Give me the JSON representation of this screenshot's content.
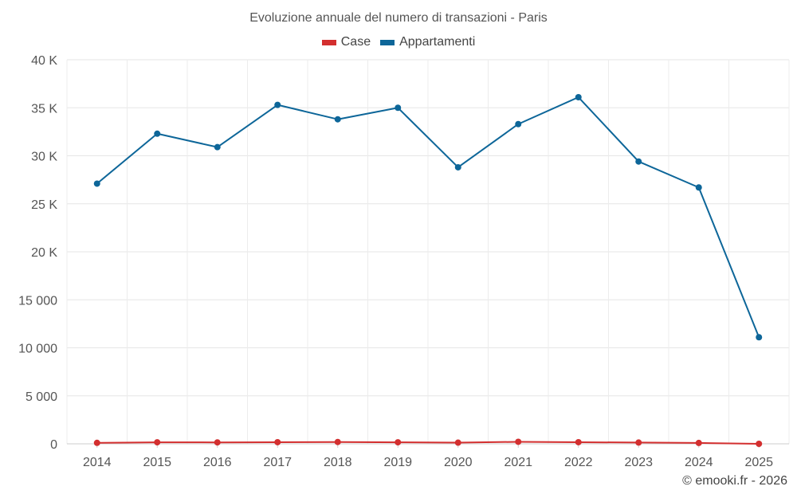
{
  "chart_data": {
    "type": "line",
    "title": "Evoluzione annuale del numero di transazioni - Paris",
    "categories": [
      "2014",
      "2015",
      "2016",
      "2017",
      "2018",
      "2019",
      "2020",
      "2021",
      "2022",
      "2023",
      "2024",
      "2025"
    ],
    "series": [
      {
        "name": "Case",
        "color": "#d32f2f",
        "values": [
          100,
          160,
          150,
          170,
          190,
          160,
          120,
          210,
          170,
          130,
          90,
          0
        ]
      },
      {
        "name": "Appartamenti",
        "color": "#0d6699",
        "values": [
          27100,
          32300,
          30900,
          35300,
          33800,
          35000,
          28800,
          33300,
          36100,
          29400,
          26700,
          11100
        ]
      }
    ],
    "ylim": [
      0,
      40000
    ],
    "yticks": [
      0,
      5000,
      10000,
      15000,
      20000,
      25000,
      30000,
      35000,
      40000
    ],
    "ytick_labels": [
      "0",
      "5 000",
      "10 000",
      "15 000",
      "20 K",
      "25 K",
      "30 K",
      "35 K",
      "40 K"
    ],
    "grid": true,
    "legend_position": "top-center"
  },
  "credit": "© emooki.fr - 2026"
}
